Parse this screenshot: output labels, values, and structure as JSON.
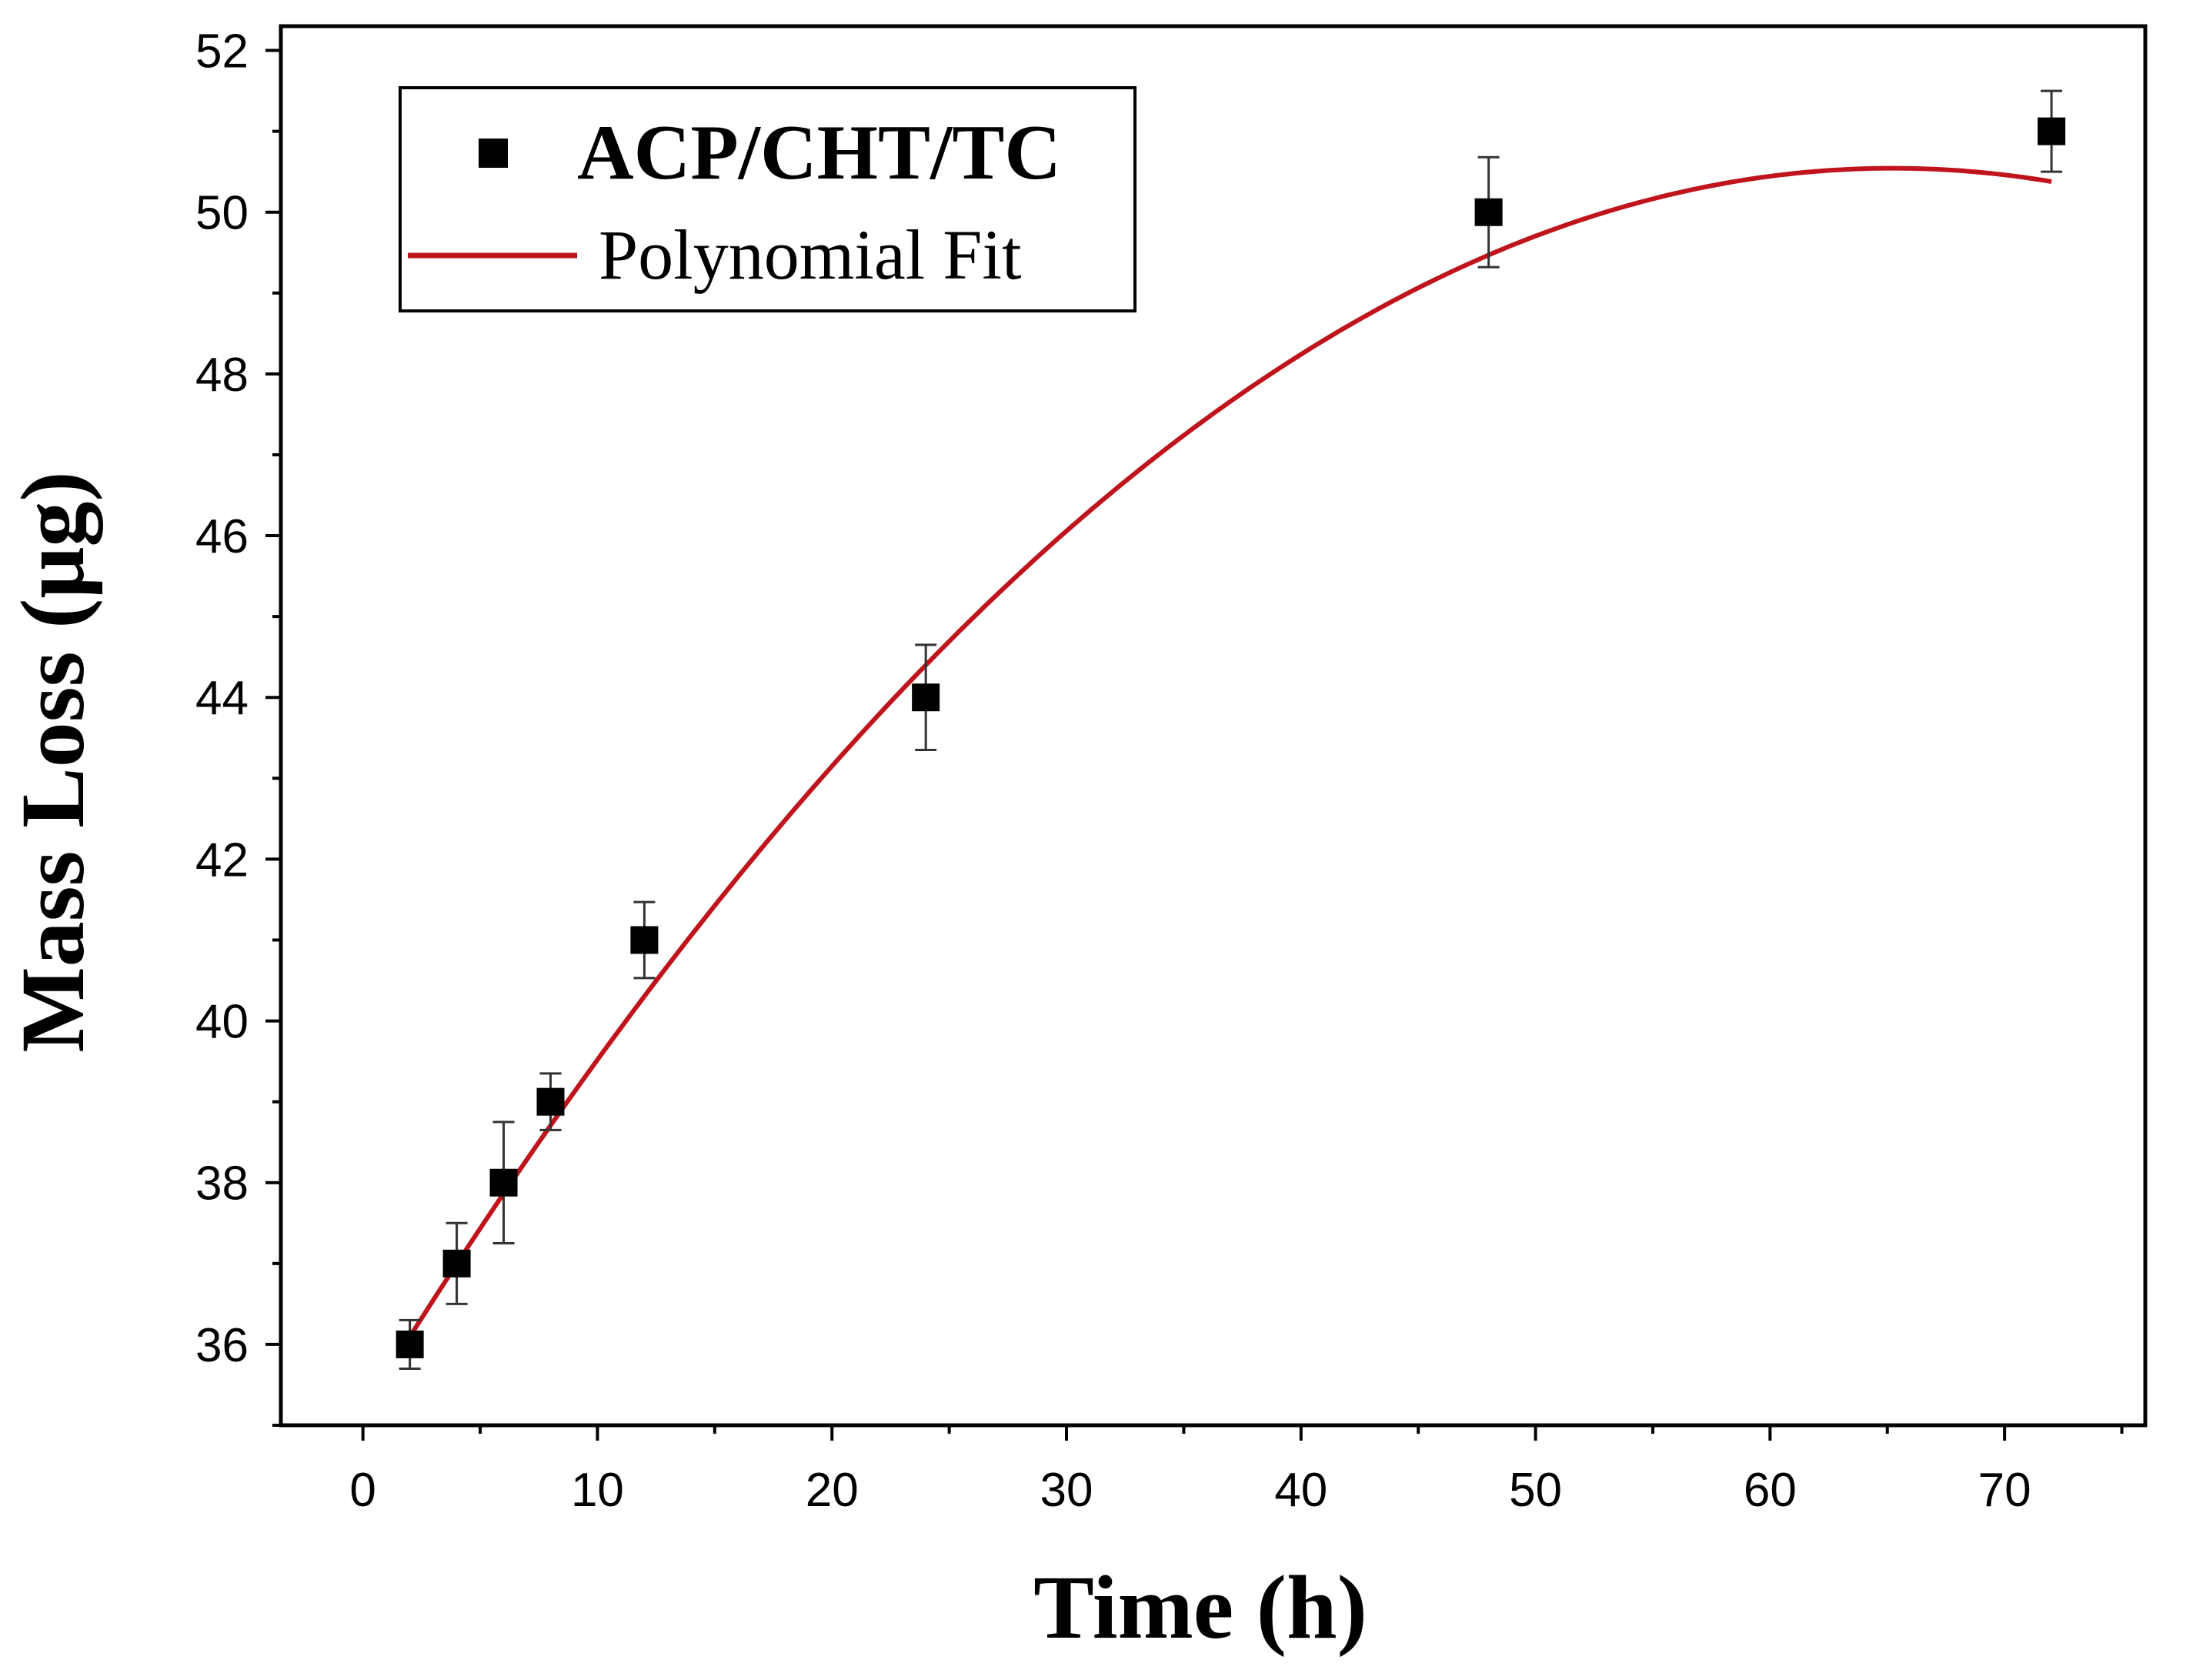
{
  "chart_data": {
    "type": "scatter",
    "xlabel": "Time (h)",
    "ylabel": "Mass Loss (μg)",
    "xlim": [
      -3.5,
      76
    ],
    "ylim": [
      35,
      52.3
    ],
    "xticks": [
      0,
      10,
      20,
      30,
      40,
      50,
      60,
      70
    ],
    "yticks": [
      36,
      38,
      40,
      42,
      44,
      46,
      48,
      50,
      52
    ],
    "x_minor_step": 5,
    "y_minor_step": 1,
    "grid": false,
    "legend_position": "top-left",
    "series": [
      {
        "name": "ACP/CHT/TC",
        "kind": "scatter",
        "marker": "square",
        "color": "#000000",
        "x": [
          2,
          4,
          6,
          8,
          12,
          24,
          48,
          72
        ],
        "y": [
          36,
          37,
          38,
          39,
          41,
          44,
          50,
          51
        ],
        "error": [
          0.3,
          0.5,
          0.75,
          0.35,
          0.47,
          0.65,
          0.68,
          0.5
        ]
      },
      {
        "name": "Polynomial Fit",
        "kind": "line",
        "color": "#c0141c",
        "x_range": [
          2,
          72
        ],
        "poly_coefficients": [
          35.167,
          0.4714,
          -0.003613
        ]
      }
    ]
  },
  "legend": {
    "series_label": "ACP/CHT/TC",
    "fit_label": "Polynomial Fit"
  }
}
